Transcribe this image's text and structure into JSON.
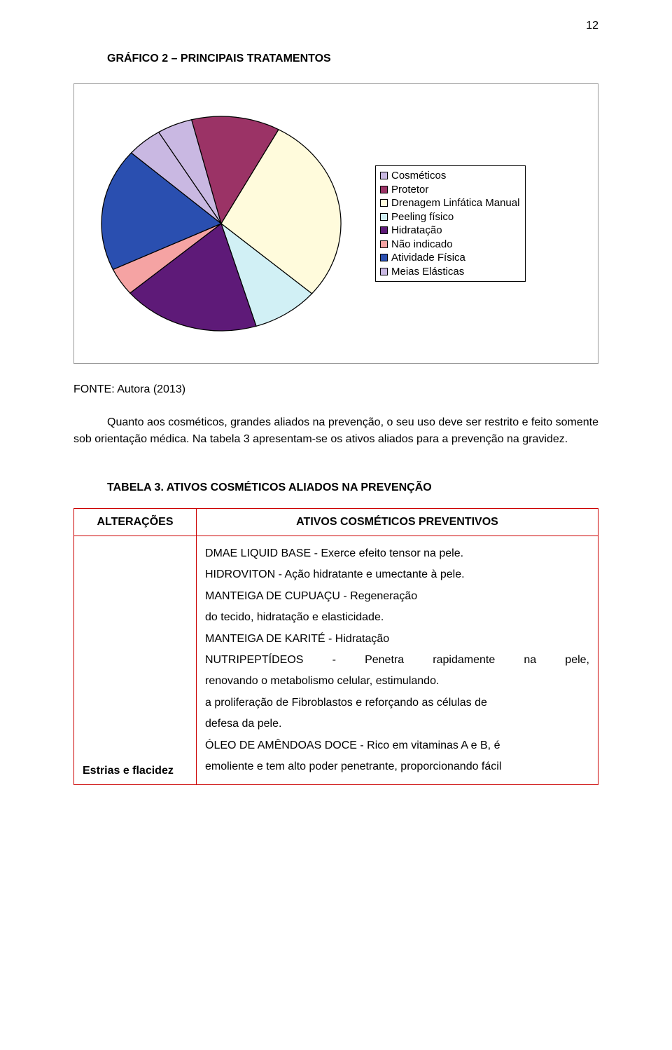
{
  "page_number": "12",
  "chart": {
    "title": "GRÁFICO 2 – PRINCIPAIS TRATAMENTOS",
    "type": "pie",
    "background_color": "#ffffff",
    "border_color": "#999999",
    "slice_border": "#000000",
    "slices": [
      {
        "label": "Cosméticos",
        "value": 16,
        "color": "#c9b8e2"
      },
      {
        "label": "Protetor",
        "value": 40,
        "color": "#9b3366"
      },
      {
        "label": "Drenagem Linfática Manual",
        "value": 95,
        "color": "#fffbdc"
      },
      {
        "label": "Peeling físico",
        "value": 30,
        "color": "#d1f0f5"
      },
      {
        "label": "Hidratação",
        "value": 62,
        "color": "#5e1a78"
      },
      {
        "label": "Não indicado",
        "value": 14,
        "color": "#f5a3a3"
      },
      {
        "label": "Atividade Física",
        "value": 62,
        "color": "#2a4fb0"
      },
      {
        "label": "Meias Elásticas",
        "value": 16,
        "color": "#c9b8e2"
      }
    ],
    "legend_items": [
      {
        "label": "Cosméticos",
        "swatch": "#c9b8e2"
      },
      {
        "label": "Protetor",
        "swatch": "#9b3366"
      },
      {
        "label": "Drenagem Linfática Manual",
        "swatch": "#fffbdc"
      },
      {
        "label": "Peeling físico",
        "swatch": "#d1f0f5"
      },
      {
        "label": "Hidratação",
        "swatch": "#5e1a78"
      },
      {
        "label": "Não indicado",
        "swatch": "#f5a3a3"
      },
      {
        "label": "Atividade Física",
        "swatch": "#2a4fb0"
      },
      {
        "label": "Meias Elásticas",
        "swatch": "#c9b8e2"
      }
    ]
  },
  "source_line": "FONTE: Autora (2013)",
  "body_paragraph": "Quanto aos cosméticos, grandes aliados na prevenção, o seu uso deve ser restrito e feito somente sob orientação médica. Na tabela 3 apresentam-se os ativos aliados para a prevenção na gravidez.",
  "table": {
    "title": "TABELA 3. ATIVOS COSMÉTICOS ALIADOS NA PREVENÇÃO",
    "border_color": "#cc0000",
    "columns": [
      "ALTERAÇÕES",
      "ATIVOS COSMÉTICOS PREVENTIVOS"
    ],
    "row_label": "Estrias e flacidez",
    "lines": {
      "l1": "DMAE LIQUID BASE - Exerce efeito tensor na pele.",
      "l2": "HIDROVITON - Ação hidratante e umectante à pele.",
      "l3": "MANTEIGA DE CUPUAÇU - Regeneração",
      "l4": "do tecido, hidratação e elasticidade.",
      "l5": "MANTEIGA DE KARITÉ - Hidratação",
      "l6_a": "NUTRIPEPTÍDEOS",
      "l6_b": "-",
      "l6_c": "Penetra",
      "l6_d": "rapidamente",
      "l6_e": "na",
      "l6_f": "pele,",
      "l7": "renovando o metabolismo celular, estimulando.",
      "l8": "a proliferação de Fibroblastos e reforçando as células de",
      "l9": "defesa da pele.",
      "l10": "ÓLEO DE AMÊNDOAS DOCE - Rico em vitaminas A e B, é",
      "l11": "emoliente e tem alto poder penetrante, proporcionando fácil"
    }
  }
}
